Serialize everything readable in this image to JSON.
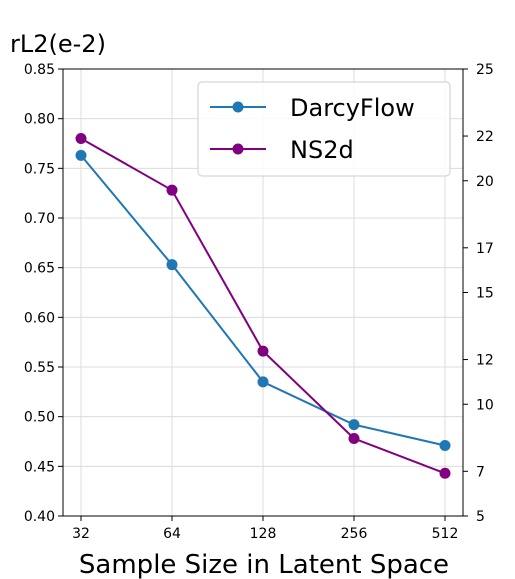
{
  "chart_data": {
    "type": "line",
    "title": "rL2(e-2)",
    "xlabel": "Sample Size in Latent Space",
    "ylabel": "",
    "categories": [
      "32",
      "64",
      "128",
      "256",
      "512"
    ],
    "ylim_left": [
      0.4,
      0.85
    ],
    "ylim_right": [
      5,
      25
    ],
    "yticks_left": [
      "0.40",
      "0.45",
      "0.50",
      "0.55",
      "0.60",
      "0.65",
      "0.70",
      "0.75",
      "0.80",
      "0.85"
    ],
    "yticks_right": [
      "5",
      "7",
      "10",
      "12",
      "15",
      "17",
      "20",
      "22",
      "25"
    ],
    "grid": true,
    "legend_position": "top-right",
    "series": [
      {
        "name": "DarcyFlow",
        "axis": "left",
        "color": "#1f77b4",
        "values": [
          0.763,
          0.653,
          0.535,
          0.492,
          0.471
        ]
      },
      {
        "name": "NS2d",
        "axis": "left",
        "color": "#800080",
        "values": [
          0.78,
          0.728,
          0.566,
          0.478,
          0.443
        ]
      }
    ]
  }
}
